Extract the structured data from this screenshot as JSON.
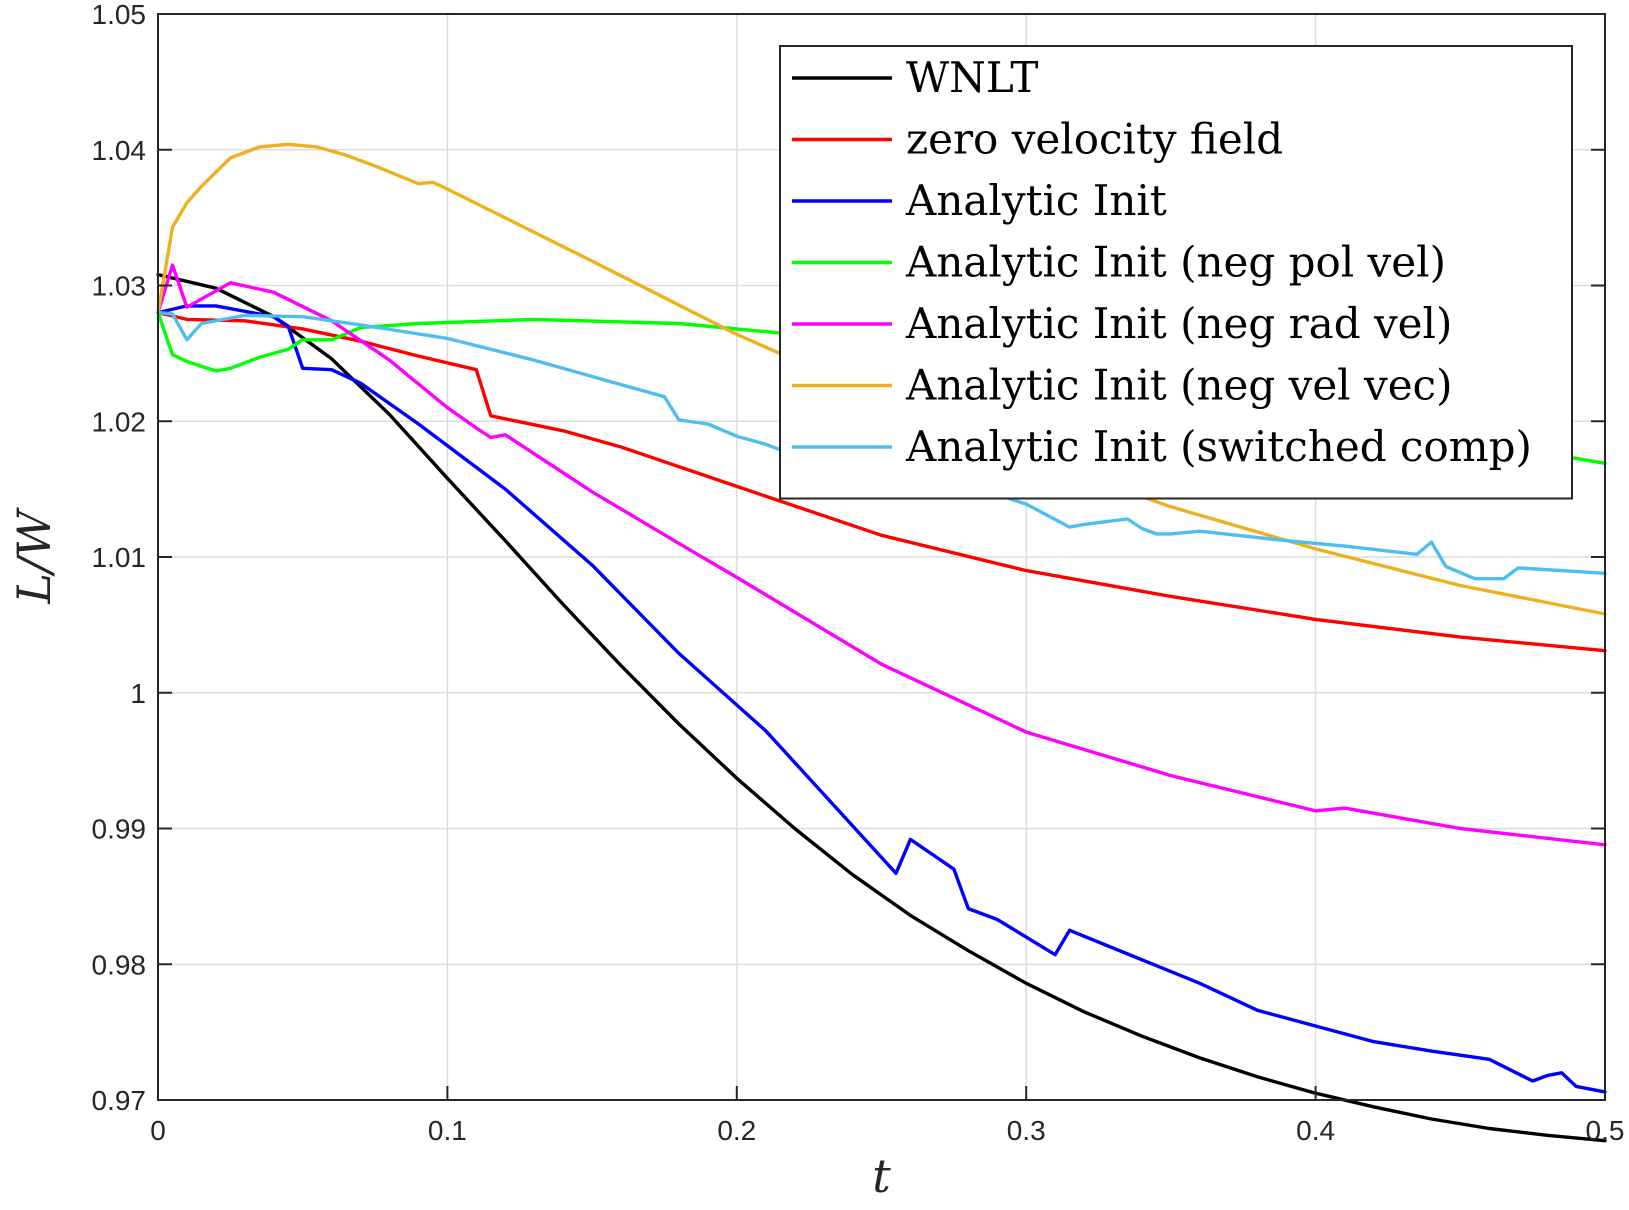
{
  "chart_data": {
    "type": "line",
    "xlabel": "t",
    "ylabel": "L/W",
    "xlim": [
      0,
      0.5
    ],
    "ylim": [
      0.97,
      1.05
    ],
    "xticks": [
      "0",
      "0.1",
      "0.2",
      "0.3",
      "0.4",
      "0.5"
    ],
    "yticks": [
      "0.97",
      "0.98",
      "0.99",
      "1",
      "1.01",
      "1.02",
      "1.03",
      "1.04",
      "1.05"
    ],
    "grid": true,
    "legend_position": "top-right",
    "series": [
      {
        "name": "WNLT",
        "color": "#000000",
        "x": [
          0,
          0.02,
          0.04,
          0.06,
          0.08,
          0.1,
          0.12,
          0.14,
          0.16,
          0.18,
          0.2,
          0.22,
          0.24,
          0.26,
          0.28,
          0.3,
          0.32,
          0.34,
          0.36,
          0.38,
          0.4,
          0.42,
          0.44,
          0.46,
          0.48,
          0.5
        ],
        "y": [
          1.0308,
          1.0298,
          1.0277,
          1.0246,
          1.0205,
          1.0158,
          1.0112,
          1.0065,
          1.002,
          0.9977,
          0.9937,
          0.99,
          0.9866,
          0.9836,
          0.981,
          0.9786,
          0.9765,
          0.9747,
          0.9731,
          0.9717,
          0.9705,
          0.9695,
          0.9686,
          0.9679,
          0.9674,
          0.967
        ]
      },
      {
        "name": "zero velocity field",
        "color": "#ff0000",
        "x": [
          0,
          0.01,
          0.03,
          0.05,
          0.07,
          0.09,
          0.11,
          0.115,
          0.14,
          0.16,
          0.2,
          0.25,
          0.3,
          0.35,
          0.4,
          0.45,
          0.5
        ],
        "y": [
          1.028,
          1.0275,
          1.0274,
          1.0268,
          1.0259,
          1.0248,
          1.0238,
          1.0204,
          1.0193,
          1.0181,
          1.0152,
          1.0116,
          1.009,
          1.0071,
          1.0054,
          1.0041,
          1.0031
        ]
      },
      {
        "name": "Analytic Init",
        "color": "#0000ff",
        "x": [
          0,
          0.01,
          0.02,
          0.04,
          0.045,
          0.05,
          0.06,
          0.07,
          0.09,
          0.12,
          0.15,
          0.18,
          0.21,
          0.255,
          0.26,
          0.275,
          0.28,
          0.29,
          0.31,
          0.315,
          0.33,
          0.36,
          0.38,
          0.42,
          0.44,
          0.46,
          0.475,
          0.48,
          0.485,
          0.49,
          0.5
        ],
        "y": [
          1.028,
          1.0285,
          1.0285,
          1.0277,
          1.027,
          1.0239,
          1.0238,
          1.0228,
          1.0198,
          1.015,
          1.0094,
          1.0029,
          0.9972,
          0.9867,
          0.9892,
          0.987,
          0.9841,
          0.9833,
          0.9807,
          0.9825,
          0.9812,
          0.9786,
          0.9766,
          0.9743,
          0.9736,
          0.973,
          0.9714,
          0.9718,
          0.972,
          0.971,
          0.9706
        ]
      },
      {
        "name": "Analytic Init (neg pol vel)",
        "color": "#00ff00",
        "x": [
          0,
          0.005,
          0.01,
          0.02,
          0.025,
          0.035,
          0.045,
          0.05,
          0.06,
          0.07,
          0.09,
          0.13,
          0.18,
          0.22,
          0.25,
          0.3,
          0.35,
          0.4,
          0.45,
          0.5
        ],
        "y": [
          1.028,
          1.0249,
          1.0244,
          1.0237,
          1.0239,
          1.0247,
          1.0253,
          1.026,
          1.026,
          1.0269,
          1.0272,
          1.0275,
          1.0272,
          1.0264,
          1.0254,
          1.0238,
          1.0222,
          1.0205,
          1.0187,
          1.0169
        ]
      },
      {
        "name": "Analytic Init (neg rad vel)",
        "color": "#ff00ff",
        "x": [
          0,
          0.005,
          0.01,
          0.025,
          0.04,
          0.06,
          0.08,
          0.1,
          0.11,
          0.115,
          0.12,
          0.15,
          0.18,
          0.2,
          0.25,
          0.3,
          0.35,
          0.4,
          0.41,
          0.45,
          0.5
        ],
        "y": [
          1.028,
          1.0315,
          1.0284,
          1.0302,
          1.0295,
          1.0274,
          1.0245,
          1.021,
          1.0195,
          1.0188,
          1.019,
          1.0148,
          1.011,
          1.0085,
          1.0021,
          0.9971,
          0.9939,
          0.9913,
          0.9915,
          0.99,
          0.9888
        ]
      },
      {
        "name": "Analytic Init (neg vel vec)",
        "color": "#edb120",
        "x": [
          0,
          0.005,
          0.01,
          0.015,
          0.025,
          0.035,
          0.045,
          0.055,
          0.065,
          0.075,
          0.09,
          0.095,
          0.1,
          0.15,
          0.2,
          0.25,
          0.3,
          0.35,
          0.4,
          0.45,
          0.5
        ],
        "y": [
          1.028,
          1.0343,
          1.0361,
          1.0373,
          1.0394,
          1.0402,
          1.0404,
          1.0402,
          1.0396,
          1.0388,
          1.0375,
          1.0376,
          1.0371,
          1.0318,
          1.0264,
          1.0217,
          1.0174,
          1.0137,
          1.0106,
          1.0079,
          1.0058
        ]
      },
      {
        "name": "Analytic Init (switched comp)",
        "color": "#4dbeee",
        "x": [
          0,
          0.005,
          0.01,
          0.015,
          0.03,
          0.05,
          0.07,
          0.1,
          0.13,
          0.15,
          0.175,
          0.18,
          0.19,
          0.2,
          0.21,
          0.22,
          0.25,
          0.27,
          0.275,
          0.28,
          0.3,
          0.315,
          0.32,
          0.335,
          0.34,
          0.345,
          0.35,
          0.36,
          0.39,
          0.41,
          0.435,
          0.44,
          0.445,
          0.455,
          0.465,
          0.47,
          0.5
        ],
        "y": [
          1.028,
          1.0279,
          1.026,
          1.0272,
          1.0278,
          1.0277,
          1.0271,
          1.0261,
          1.0245,
          1.0233,
          1.0218,
          1.0201,
          1.0198,
          1.0189,
          1.0183,
          1.0175,
          1.0158,
          1.0145,
          1.0157,
          1.0153,
          1.0139,
          1.0122,
          1.0124,
          1.0128,
          1.0121,
          1.0117,
          1.0117,
          1.0119,
          1.0112,
          1.0108,
          1.0102,
          1.0111,
          1.0093,
          1.0084,
          1.0084,
          1.0092,
          1.0088
        ]
      }
    ]
  }
}
